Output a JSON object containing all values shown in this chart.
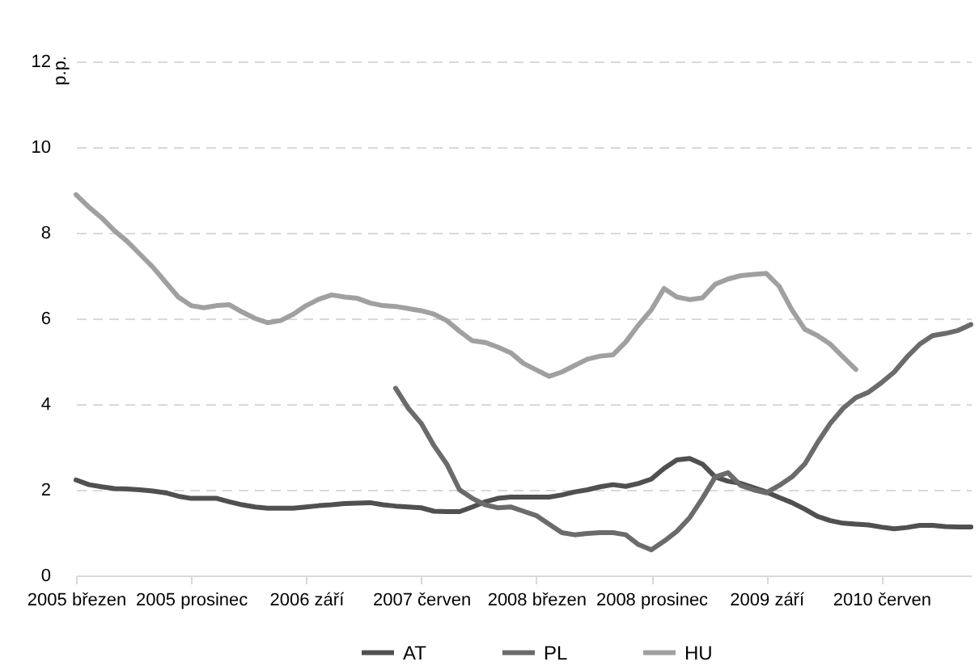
{
  "chart_data": {
    "type": "line",
    "ylabel": "p.p.",
    "categories": [
      "2005 březen",
      null,
      null,
      null,
      null,
      null,
      null,
      null,
      null,
      "2005 prosinec",
      null,
      null,
      null,
      null,
      null,
      null,
      null,
      null,
      "2006 září",
      null,
      null,
      null,
      null,
      null,
      null,
      null,
      null,
      "2007 červen",
      null,
      null,
      null,
      null,
      null,
      null,
      null,
      null,
      "2008 březen",
      null,
      null,
      null,
      null,
      null,
      null,
      null,
      null,
      "2008 prosinec",
      null,
      null,
      null,
      null,
      null,
      null,
      null,
      null,
      "2009 září",
      null,
      null,
      null,
      null,
      null,
      null,
      null,
      null,
      "2010 červen",
      null,
      null,
      null,
      null,
      null,
      null,
      null
    ],
    "series": [
      {
        "name": "AT",
        "color": "#505050",
        "values": [
          2.23,
          2.12,
          2.07,
          2.03,
          2.02,
          2.0,
          1.97,
          1.93,
          1.85,
          1.8,
          1.8,
          1.8,
          1.72,
          1.65,
          1.6,
          1.57,
          1.57,
          1.57,
          1.6,
          1.63,
          1.65,
          1.68,
          1.69,
          1.7,
          1.65,
          1.62,
          1.6,
          1.58,
          1.5,
          1.49,
          1.49,
          1.6,
          1.72,
          1.8,
          1.83,
          1.83,
          1.83,
          1.83,
          1.88,
          1.95,
          2.0,
          2.07,
          2.12,
          2.08,
          2.15,
          2.25,
          2.5,
          2.7,
          2.73,
          2.6,
          2.3,
          2.2,
          2.15,
          2.05,
          1.95,
          1.82,
          1.7,
          1.55,
          1.38,
          1.28,
          1.22,
          1.2,
          1.18,
          1.13,
          1.09,
          1.12,
          1.17,
          1.17,
          1.14,
          1.13,
          1.13
        ]
      },
      {
        "name": "PL",
        "color": "#6b6b6b",
        "values": [
          null,
          null,
          null,
          null,
          null,
          null,
          null,
          null,
          null,
          null,
          null,
          null,
          null,
          null,
          null,
          null,
          null,
          null,
          null,
          null,
          null,
          null,
          null,
          null,
          null,
          4.37,
          3.9,
          3.55,
          3.03,
          2.6,
          2.0,
          1.8,
          1.65,
          1.58,
          1.6,
          1.5,
          1.4,
          1.2,
          1.0,
          0.95,
          0.98,
          1.0,
          1.0,
          0.95,
          0.72,
          0.6,
          0.8,
          1.03,
          1.35,
          1.8,
          2.3,
          2.4,
          2.1,
          2.0,
          1.93,
          2.1,
          2.3,
          2.6,
          3.1,
          3.55,
          3.9,
          4.15,
          4.28,
          4.5,
          4.75,
          5.1,
          5.4,
          5.6,
          5.65,
          5.72,
          5.86
        ]
      },
      {
        "name": "HU",
        "color": "#a0a0a0",
        "values": [
          8.89,
          8.6,
          8.35,
          8.05,
          7.8,
          7.5,
          7.2,
          6.85,
          6.5,
          6.3,
          6.25,
          6.3,
          6.32,
          6.15,
          6.0,
          5.9,
          5.95,
          6.1,
          6.3,
          6.45,
          6.55,
          6.5,
          6.47,
          6.36,
          6.3,
          6.28,
          6.23,
          6.18,
          6.1,
          5.95,
          5.7,
          5.48,
          5.44,
          5.33,
          5.2,
          4.95,
          4.8,
          4.65,
          4.75,
          4.9,
          5.05,
          5.12,
          5.15,
          5.45,
          5.85,
          6.2,
          6.7,
          6.5,
          6.44,
          6.48,
          6.8,
          6.92,
          7.0,
          7.03,
          7.05,
          6.75,
          6.2,
          5.75,
          5.6,
          5.4,
          5.1,
          4.81,
          null,
          null,
          null,
          null,
          null,
          null,
          null,
          null,
          null
        ]
      }
    ],
    "ylim": [
      0,
      12
    ],
    "yticks": [
      0,
      2,
      4,
      6,
      8,
      10,
      12
    ],
    "grid": "y",
    "legend": "bottom"
  }
}
